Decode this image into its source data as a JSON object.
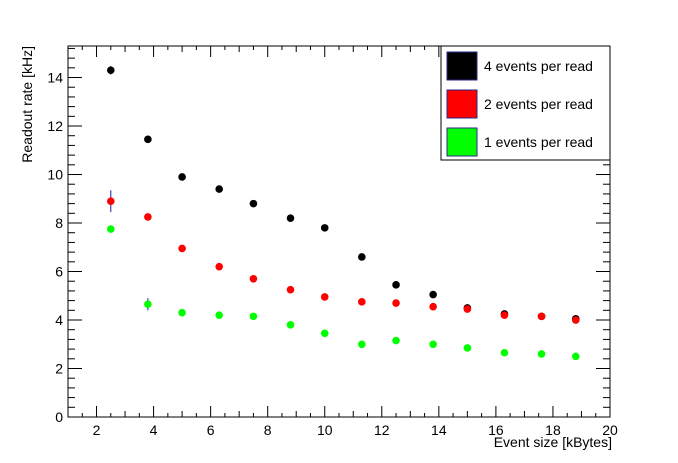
{
  "chart_data": {
    "type": "scatter",
    "title": "",
    "xlabel": "Event size [kBytes]",
    "ylabel": "Readout rate [kHz]",
    "xlim": [
      1,
      20
    ],
    "ylim": [
      0,
      15.3
    ],
    "x_ticks": [
      2,
      4,
      6,
      8,
      10,
      12,
      14,
      16,
      18,
      20
    ],
    "y_ticks": [
      0,
      2,
      4,
      6,
      8,
      10,
      12,
      14
    ],
    "grid": false,
    "legend_position": "top-right",
    "series": [
      {
        "name": "4 events per read",
        "color": "#000000",
        "x": [
          2.5,
          3.8,
          5.0,
          6.3,
          7.5,
          8.8,
          10.0,
          11.3,
          12.5,
          13.8,
          15.0,
          16.3,
          17.6,
          18.8
        ],
        "y": [
          14.3,
          11.45,
          9.9,
          9.4,
          8.8,
          8.2,
          7.8,
          6.6,
          5.45,
          5.05,
          4.5,
          4.25,
          4.15,
          4.05
        ],
        "yerr": [
          0.18,
          0.05,
          0.05,
          0.05,
          0.05,
          0.05,
          0.05,
          0.05,
          0.05,
          0.05,
          0.05,
          0.05,
          0.05,
          0.05
        ]
      },
      {
        "name": "2 events per read",
        "color": "#ff0000",
        "x": [
          2.5,
          3.8,
          5.0,
          6.3,
          7.5,
          8.8,
          10.0,
          11.3,
          12.5,
          13.8,
          15.0,
          16.3,
          17.6,
          18.8
        ],
        "y": [
          8.9,
          8.25,
          6.95,
          6.2,
          5.7,
          5.25,
          4.95,
          4.75,
          4.7,
          4.55,
          4.45,
          4.2,
          4.15,
          4.0
        ],
        "yerr": [
          0.45,
          0.05,
          0.05,
          0.05,
          0.05,
          0.05,
          0.05,
          0.05,
          0.05,
          0.05,
          0.05,
          0.05,
          0.05,
          0.05
        ]
      },
      {
        "name": "1 events per read",
        "color": "#00ff00",
        "x": [
          2.5,
          3.8,
          5.0,
          6.3,
          7.5,
          8.8,
          10.0,
          11.3,
          12.5,
          13.8,
          15.0,
          16.3,
          17.6,
          18.8
        ],
        "y": [
          7.75,
          4.65,
          4.3,
          4.2,
          4.15,
          3.8,
          3.45,
          3.0,
          3.15,
          3.0,
          2.85,
          2.65,
          2.6,
          2.5
        ],
        "yerr": [
          0.05,
          0.25,
          0.05,
          0.05,
          0.05,
          0.05,
          0.05,
          0.05,
          0.05,
          0.05,
          0.05,
          0.05,
          0.05,
          0.05
        ]
      }
    ]
  }
}
